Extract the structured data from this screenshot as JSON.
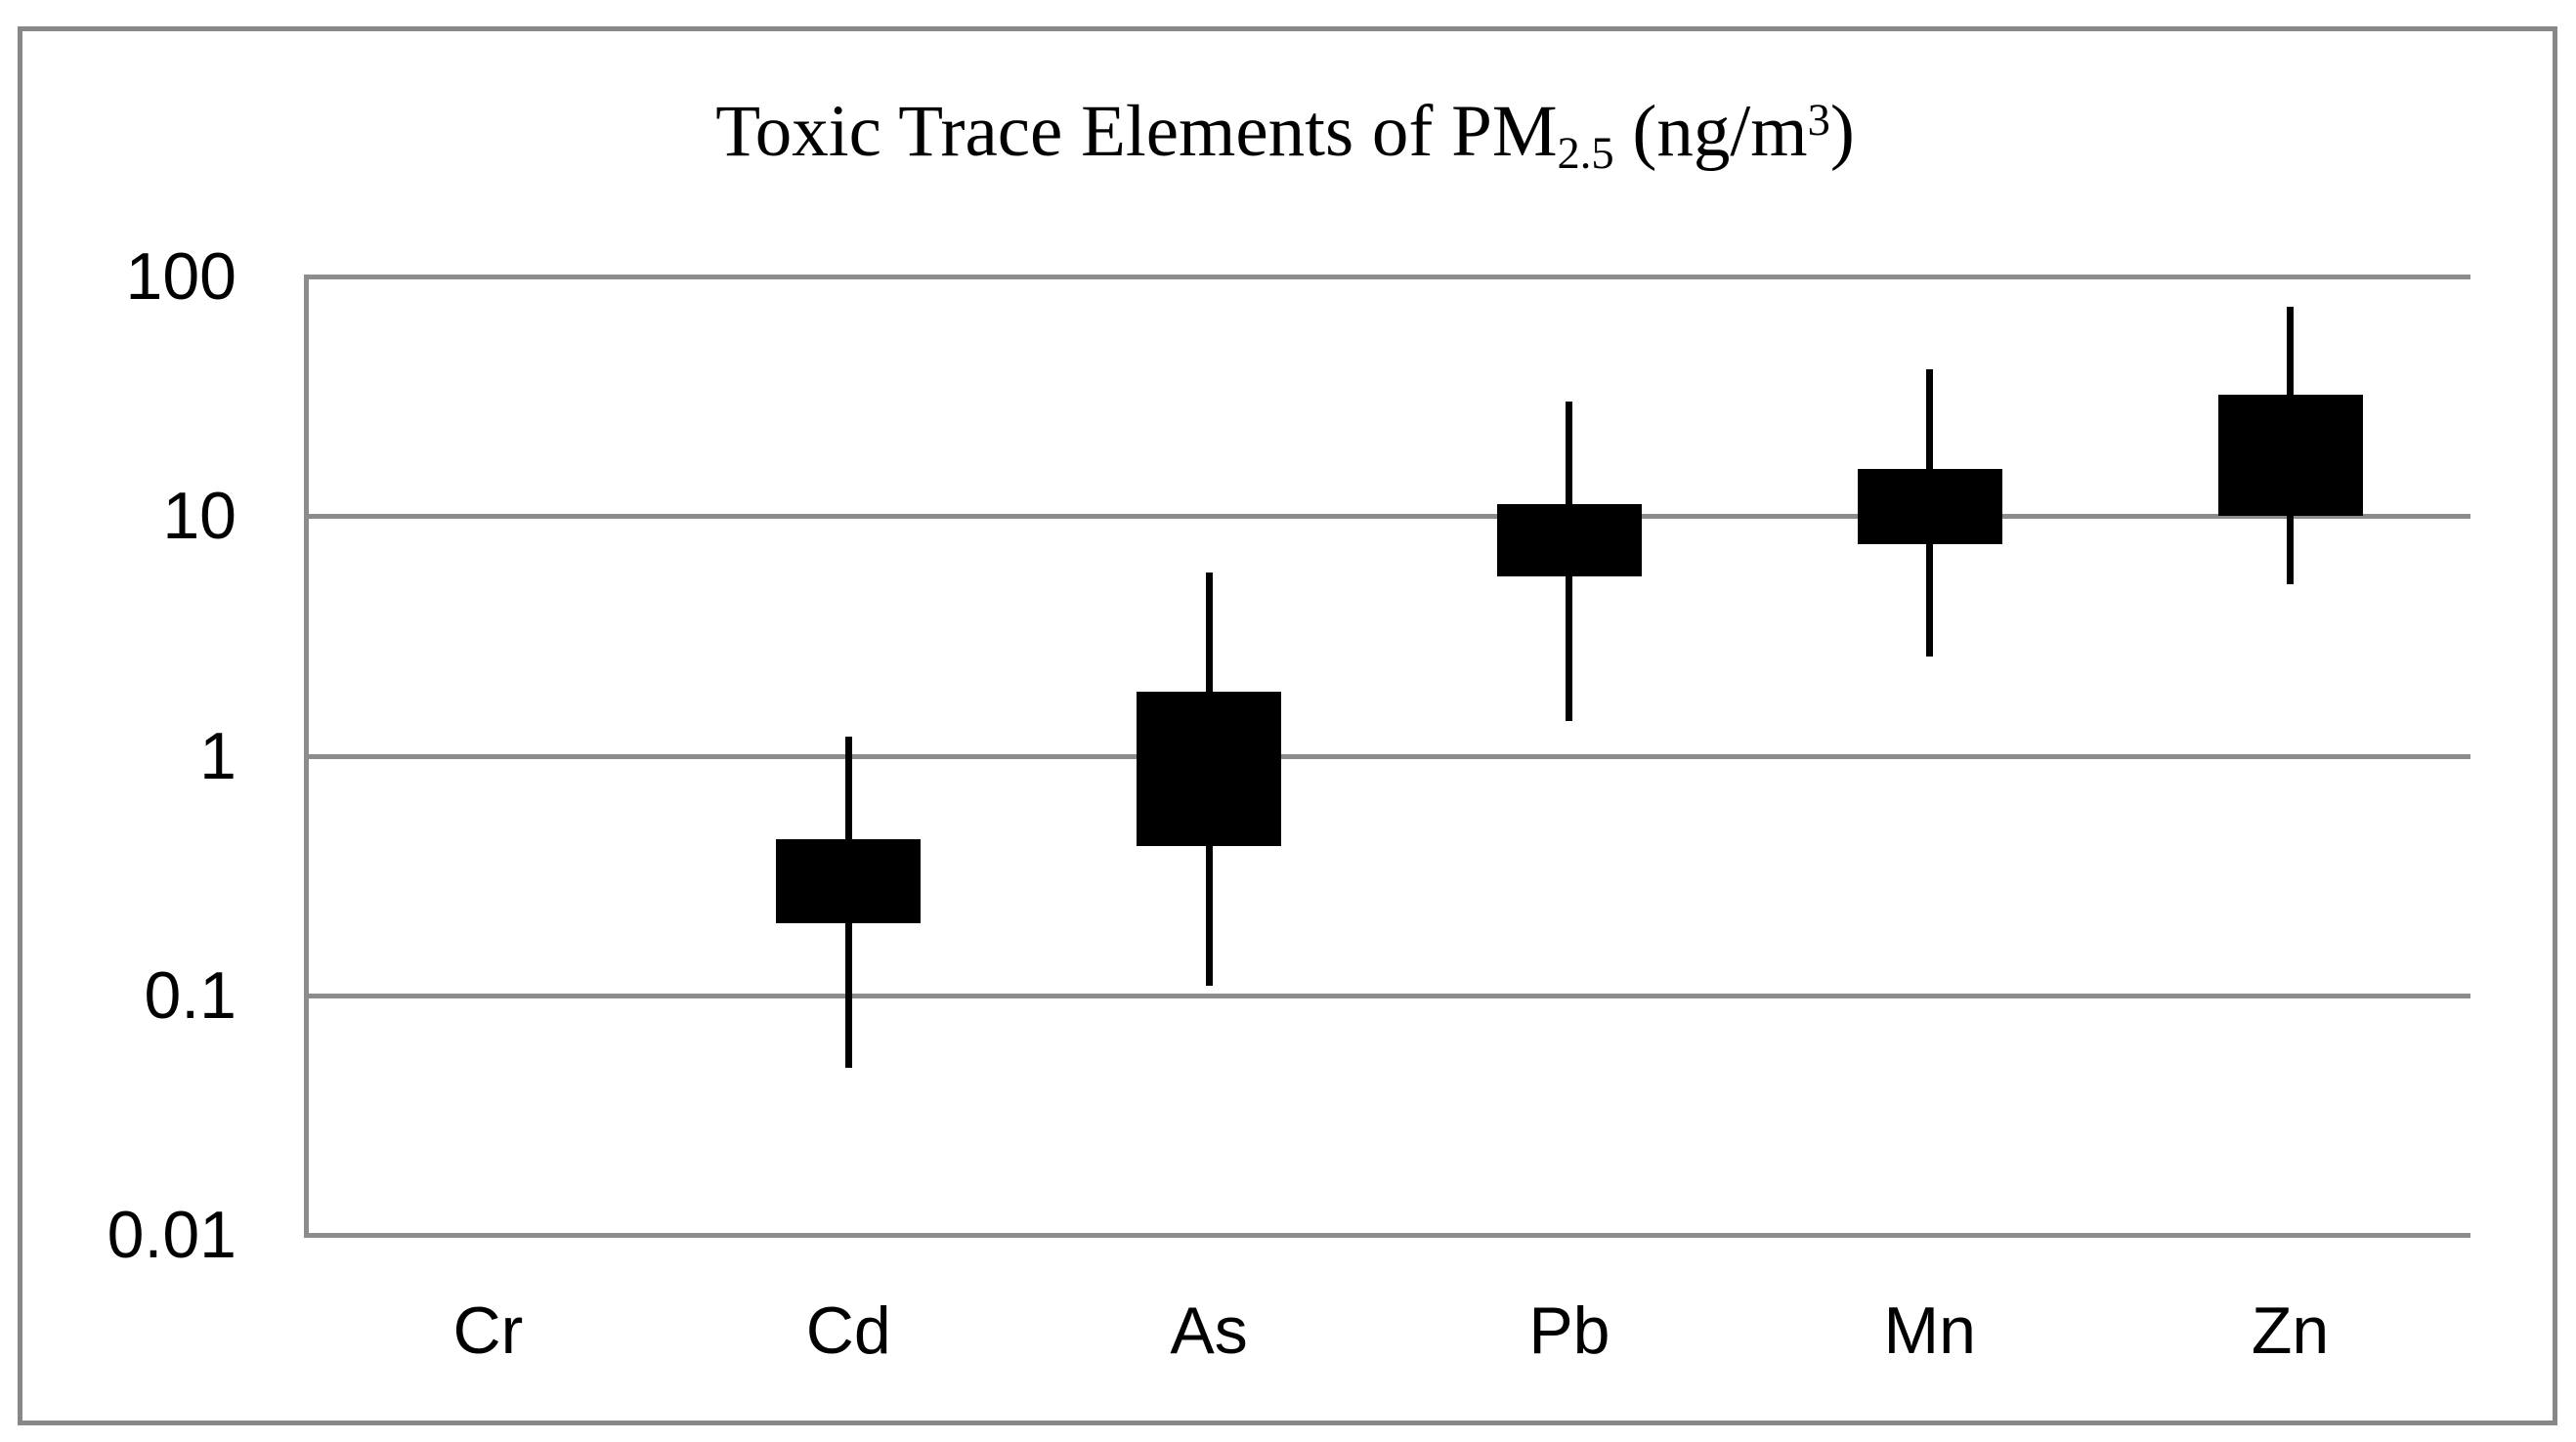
{
  "title": {
    "prefix": "Toxic Trace Elements of PM",
    "subscript": "2.5",
    "mid": " (ng/m",
    "superscript": "3",
    "suffix": ")"
  },
  "colors": {
    "candle": "#000000",
    "whisker": "#000000",
    "gridline": "#8c8c8c",
    "axis_line": "#8c8c8c",
    "frame_border": "#878787",
    "background": "#ffffff",
    "text": "#000000"
  },
  "chart_data": {
    "type": "candlestick",
    "scale": "log10",
    "title": "Toxic Trace Elements of PM2.5 (ng/m3)",
    "categories": [
      "Cr",
      "Cd",
      "As",
      "Pb",
      "Mn",
      "Zn"
    ],
    "y_ticks": [
      "100",
      "10",
      "1",
      "0.1",
      "0.01"
    ],
    "y_tick_values": [
      100,
      10,
      1,
      0.1,
      0.01
    ],
    "ylim": [
      0.01,
      100
    ],
    "grid": true,
    "legend": false,
    "series": [
      {
        "category": "Cr",
        "min": null,
        "box_low": null,
        "box_high": null,
        "max": null
      },
      {
        "category": "Cd",
        "min": 0.05,
        "box_low": 0.2,
        "box_high": 0.45,
        "max": 1.2
      },
      {
        "category": "As",
        "min": 0.11,
        "box_low": 0.42,
        "box_high": 1.85,
        "max": 5.8
      },
      {
        "category": "Pb",
        "min": 1.4,
        "box_low": 5.6,
        "box_high": 11.2,
        "max": 30
      },
      {
        "category": "Mn",
        "min": 2.6,
        "box_low": 7.6,
        "box_high": 15.8,
        "max": 41
      },
      {
        "category": "Zn",
        "min": 5.2,
        "box_low": 10,
        "box_high": 32,
        "max": 75
      }
    ]
  }
}
